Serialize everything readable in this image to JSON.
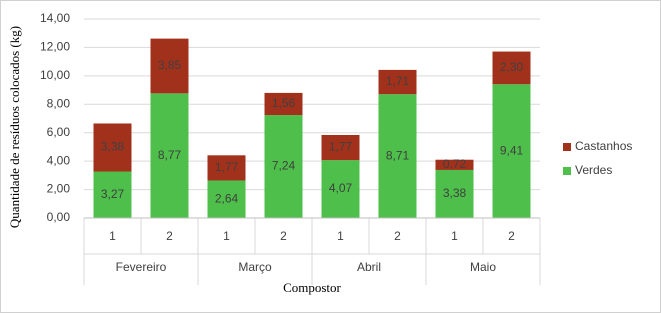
{
  "chart_data": {
    "type": "stacked_bar",
    "y_label": "Quantidade de resíduos colocados (kg)",
    "x_label": "Compostor",
    "categories": [
      "1",
      "2",
      "1",
      "2",
      "1",
      "2",
      "1",
      "2"
    ],
    "category_groups": [
      "Fevereiro",
      "Março",
      "Abril",
      "Maio"
    ],
    "series": [
      {
        "name": "Verdes",
        "color": "#4dbf4a",
        "values": [
          3.27,
          8.77,
          2.64,
          7.24,
          4.07,
          8.71,
          3.38,
          9.41
        ],
        "value_labels": [
          "3,27",
          "8,77",
          "2,64",
          "7,24",
          "4,07",
          "8,71",
          "3,38",
          "9,41"
        ]
      },
      {
        "name": "Castanhos",
        "color": "#a2311c",
        "values": [
          3.38,
          3.85,
          1.77,
          1.56,
          1.77,
          1.71,
          0.72,
          2.3
        ],
        "value_labels": [
          "3,38",
          "3,85",
          "1,77",
          "1,56",
          "1,77",
          "1,71",
          "0,72",
          "2,30"
        ]
      }
    ],
    "ylim": [
      0,
      14
    ],
    "yticks": [
      {
        "value": 0,
        "label": "0,00"
      },
      {
        "value": 2,
        "label": "2,00"
      },
      {
        "value": 4,
        "label": "4,00"
      },
      {
        "value": 6,
        "label": "6,00"
      },
      {
        "value": 8,
        "label": "8,00"
      },
      {
        "value": 10,
        "label": "10,00"
      },
      {
        "value": 12,
        "label": "12,00"
      },
      {
        "value": 14,
        "label": "14,00"
      }
    ],
    "grid": true,
    "legend": "right"
  }
}
